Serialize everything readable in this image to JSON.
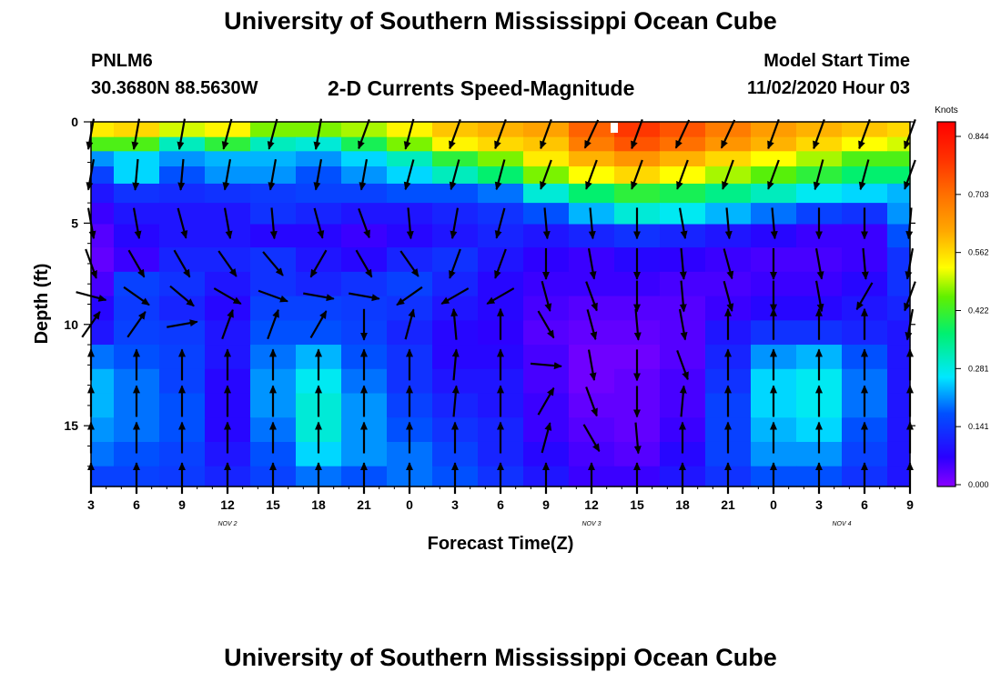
{
  "header": {
    "title": "University of Southern Mississippi Ocean Cube",
    "station": "PNLM6",
    "coords": "30.3680N 88.5630W",
    "subtitle": "2-D Currents Speed-Magnitude",
    "model_start_label": "Model Start Time",
    "model_start_value": "11/02/2020 Hour 03"
  },
  "footer": {
    "title": "University of Southern Mississippi Ocean Cube"
  },
  "chart_data": {
    "type": "heatmap",
    "xlabel": "Forecast Time(Z)",
    "ylabel": "Depth (ft)",
    "x_tick_labels": [
      "3",
      "6",
      "9",
      "12",
      "15",
      "18",
      "21",
      "0",
      "3",
      "6",
      "9",
      "12",
      "15",
      "18",
      "21",
      "0",
      "3",
      "6",
      "9"
    ],
    "date_labels": [
      {
        "text": "NOV 2",
        "at_tick": 3
      },
      {
        "text": "NOV 3",
        "at_tick": 11
      },
      {
        "text": "NOV 4",
        "at_tick": 16.5
      }
    ],
    "x_range_hours": [
      0,
      54
    ],
    "ylim": [
      0,
      18
    ],
    "y_ticks": [
      0,
      5,
      10,
      15
    ],
    "colorbar": {
      "label": "Knots",
      "ticks": [
        "0.844",
        "0.703",
        "0.562",
        "0.422",
        "0.281",
        "0.141",
        "0.000"
      ],
      "range": [
        0,
        0.9
      ]
    },
    "depth_levels": [
      0.4,
      1.1,
      1.8,
      2.6,
      3.5,
      4.5,
      5.6,
      6.8,
      8.0,
      9.2,
      10.4,
      11.6,
      12.8,
      14.0,
      15.2,
      16.4,
      17.6
    ],
    "time_columns_hours": [
      0,
      3,
      6,
      9,
      12,
      15,
      18,
      21,
      24,
      27,
      30,
      33,
      36,
      39,
      42,
      45,
      48,
      51,
      54
    ],
    "speed_knots": [
      [
        0.56,
        0.58,
        0.52,
        0.55,
        0.48,
        0.48,
        0.5,
        0.55,
        0.6,
        0.62,
        0.64,
        0.74,
        0.8,
        0.76,
        0.7,
        0.65,
        0.62,
        0.6,
        0.58
      ],
      [
        0.45,
        0.45,
        0.32,
        0.42,
        0.32,
        0.3,
        0.4,
        0.48,
        0.55,
        0.58,
        0.6,
        0.7,
        0.76,
        0.72,
        0.66,
        0.62,
        0.58,
        0.54,
        0.52
      ],
      [
        0.22,
        0.26,
        0.22,
        0.24,
        0.24,
        0.22,
        0.26,
        0.32,
        0.42,
        0.48,
        0.56,
        0.62,
        0.66,
        0.62,
        0.58,
        0.54,
        0.5,
        0.45,
        0.45
      ],
      [
        0.16,
        0.26,
        0.18,
        0.22,
        0.22,
        0.18,
        0.22,
        0.26,
        0.32,
        0.38,
        0.48,
        0.54,
        0.58,
        0.54,
        0.5,
        0.46,
        0.42,
        0.38,
        0.38
      ],
      [
        0.1,
        0.14,
        0.13,
        0.14,
        0.15,
        0.16,
        0.16,
        0.18,
        0.18,
        0.2,
        0.3,
        0.38,
        0.42,
        0.4,
        0.36,
        0.32,
        0.28,
        0.26,
        0.24
      ],
      [
        0.06,
        0.1,
        0.1,
        0.1,
        0.14,
        0.12,
        0.1,
        0.1,
        0.12,
        0.14,
        0.18,
        0.24,
        0.3,
        0.28,
        0.24,
        0.2,
        0.16,
        0.14,
        0.22
      ],
      [
        0.04,
        0.08,
        0.1,
        0.1,
        0.08,
        0.08,
        0.06,
        0.08,
        0.1,
        0.12,
        0.1,
        0.12,
        0.14,
        0.12,
        0.1,
        0.08,
        0.06,
        0.06,
        0.18
      ],
      [
        0.03,
        0.06,
        0.12,
        0.12,
        0.14,
        0.1,
        0.08,
        0.12,
        0.14,
        0.1,
        0.07,
        0.06,
        0.08,
        0.07,
        0.06,
        0.05,
        0.05,
        0.06,
        0.14
      ],
      [
        0.05,
        0.16,
        0.14,
        0.1,
        0.14,
        0.12,
        0.14,
        0.16,
        0.12,
        0.08,
        0.06,
        0.06,
        0.06,
        0.05,
        0.05,
        0.06,
        0.06,
        0.08,
        0.14
      ],
      [
        0.08,
        0.15,
        0.12,
        0.08,
        0.16,
        0.16,
        0.15,
        0.14,
        0.1,
        0.08,
        0.05,
        0.04,
        0.04,
        0.04,
        0.06,
        0.08,
        0.08,
        0.1,
        0.12
      ],
      [
        0.1,
        0.16,
        0.15,
        0.1,
        0.18,
        0.18,
        0.16,
        0.12,
        0.08,
        0.07,
        0.04,
        0.03,
        0.03,
        0.04,
        0.1,
        0.14,
        0.14,
        0.12,
        0.1
      ],
      [
        0.2,
        0.18,
        0.16,
        0.1,
        0.2,
        0.24,
        0.18,
        0.14,
        0.08,
        0.08,
        0.05,
        0.02,
        0.02,
        0.04,
        0.12,
        0.22,
        0.24,
        0.18,
        0.1
      ],
      [
        0.24,
        0.2,
        0.16,
        0.08,
        0.22,
        0.28,
        0.2,
        0.14,
        0.1,
        0.1,
        0.05,
        0.02,
        0.03,
        0.05,
        0.14,
        0.26,
        0.28,
        0.2,
        0.1
      ],
      [
        0.24,
        0.2,
        0.18,
        0.08,
        0.22,
        0.3,
        0.22,
        0.16,
        0.12,
        0.1,
        0.06,
        0.03,
        0.03,
        0.05,
        0.16,
        0.26,
        0.28,
        0.2,
        0.1
      ],
      [
        0.22,
        0.2,
        0.18,
        0.08,
        0.2,
        0.3,
        0.22,
        0.18,
        0.14,
        0.12,
        0.06,
        0.04,
        0.03,
        0.06,
        0.16,
        0.24,
        0.26,
        0.18,
        0.1
      ],
      [
        0.2,
        0.18,
        0.16,
        0.1,
        0.18,
        0.26,
        0.22,
        0.2,
        0.16,
        0.12,
        0.08,
        0.05,
        0.04,
        0.08,
        0.16,
        0.22,
        0.22,
        0.16,
        0.1
      ],
      [
        0.16,
        0.16,
        0.15,
        0.12,
        0.16,
        0.2,
        0.18,
        0.2,
        0.18,
        0.14,
        0.1,
        0.06,
        0.06,
        0.1,
        0.14,
        0.18,
        0.18,
        0.14,
        0.1
      ]
    ],
    "vector_depths": [
      0.6,
      2.6,
      5.0,
      7.0,
      8.6,
      10.0,
      12.0,
      13.8,
      15.6,
      17.6
    ],
    "vector_angles_deg": [
      [
        190,
        190,
        190,
        195,
        195,
        190,
        200,
        195,
        200,
        200,
        200,
        205,
        200,
        205,
        205,
        200,
        200,
        200,
        200
      ],
      [
        190,
        185,
        185,
        190,
        190,
        190,
        190,
        195,
        195,
        195,
        200,
        200,
        200,
        200,
        200,
        200,
        195,
        195,
        200
      ],
      [
        170,
        170,
        165,
        170,
        175,
        165,
        160,
        175,
        190,
        195,
        175,
        175,
        180,
        170,
        175,
        175,
        180,
        180,
        185
      ],
      [
        160,
        150,
        150,
        145,
        140,
        210,
        150,
        145,
        200,
        200,
        180,
        170,
        180,
        175,
        165,
        180,
        170,
        175,
        190
      ],
      [
        105,
        125,
        130,
        120,
        110,
        100,
        100,
        235,
        240,
        240,
        165,
        160,
        180,
        175,
        165,
        180,
        170,
        210,
        200
      ],
      [
        35,
        35,
        80,
        20,
        20,
        30,
        180,
        15,
        355,
        0,
        150,
        165,
        175,
        170,
        0,
        0,
        0,
        0,
        190
      ],
      [
        0,
        0,
        0,
        0,
        0,
        0,
        0,
        0,
        5,
        0,
        95,
        170,
        180,
        160,
        0,
        0,
        0,
        0,
        0
      ],
      [
        0,
        0,
        0,
        0,
        0,
        0,
        0,
        0,
        5,
        0,
        30,
        160,
        180,
        5,
        0,
        0,
        0,
        0,
        0
      ],
      [
        0,
        0,
        0,
        0,
        0,
        0,
        0,
        0,
        0,
        0,
        15,
        150,
        175,
        0,
        0,
        0,
        0,
        0,
        0
      ],
      [
        0,
        0,
        0,
        0,
        0,
        0,
        0,
        0,
        0,
        0,
        0,
        0,
        0,
        0,
        0,
        0,
        0,
        0,
        0
      ]
    ]
  }
}
